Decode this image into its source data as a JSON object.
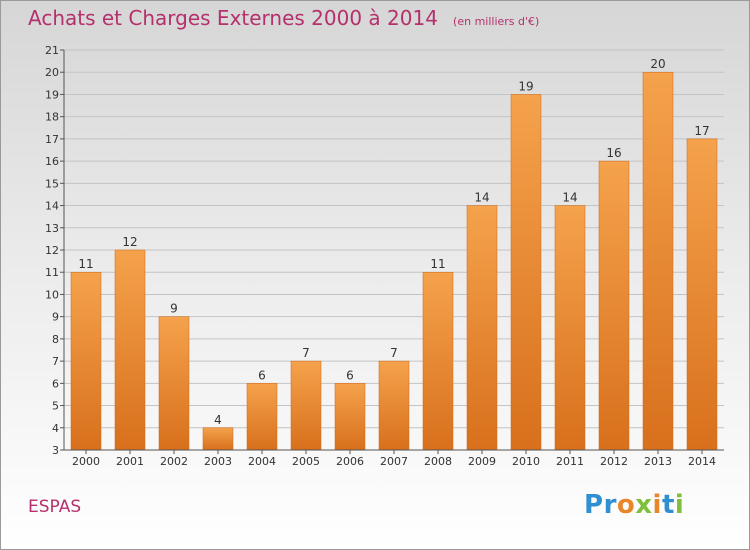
{
  "title": "Achats et Charges Externes 2000 à 2014",
  "unit": "(en milliers d'€)",
  "commune": "ESPAS",
  "logo": {
    "text": "Proxiti",
    "letters": [
      {
        "ch": "P",
        "color": "#2f8fd1"
      },
      {
        "ch": "r",
        "color": "#2f8fd1"
      },
      {
        "ch": "o",
        "color": "#e8862a"
      },
      {
        "ch": "x",
        "color": "#7fbf3c"
      },
      {
        "ch": "i",
        "color": "#e8862a"
      },
      {
        "ch": "t",
        "color": "#2f8fd1"
      },
      {
        "ch": "i",
        "color": "#7fbf3c"
      }
    ]
  },
  "colors": {
    "title": "#b5306c",
    "bar_top": "#f5a24c",
    "bar_bottom": "#d8701c",
    "grid": "#c4c4c4"
  },
  "chart_data": {
    "type": "bar",
    "title": "Achats et Charges Externes 2000 à 2014",
    "subtitle": "(en milliers d'€)",
    "categories": [
      "2000",
      "2001",
      "2002",
      "2003",
      "2004",
      "2005",
      "2006",
      "2007",
      "2008",
      "2009",
      "2010",
      "2011",
      "2012",
      "2013",
      "2014"
    ],
    "values": [
      11,
      12,
      9,
      4,
      6,
      7,
      6,
      7,
      11,
      14,
      19,
      14,
      16,
      20,
      17
    ],
    "ylim": [
      3,
      21
    ],
    "yticks": [
      3,
      4,
      5,
      6,
      7,
      8,
      9,
      10,
      11,
      12,
      13,
      14,
      15,
      16,
      17,
      18,
      19,
      20,
      21
    ],
    "grid": true,
    "data_labels": true
  }
}
